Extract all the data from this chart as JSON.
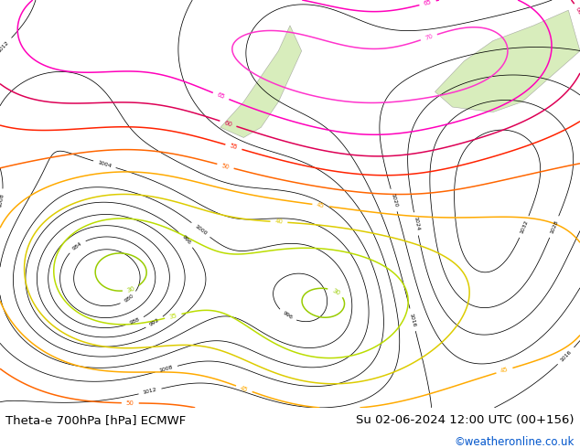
{
  "title_left": "Theta-e 700hPa [hPa] ECMWF",
  "title_right": "Su 02-06-2024 12:00 UTC (00+156)",
  "credit": "©weatheronline.co.uk",
  "credit_color": "#0055cc",
  "bg_color": "#ffffff",
  "map_bg": "#f5f5f5",
  "fig_width": 6.34,
  "fig_height": 4.9,
  "dpi": 100,
  "bottom_bar_height": 0.09,
  "label_fontsize": 9.5,
  "credit_fontsize": 8.5,
  "thetae_colors": {
    "20": "#00ccff",
    "25": "#00aadd",
    "30": "#88cc00",
    "35": "#aadd00",
    "40": "#ccdd00",
    "45": "#ffaa00",
    "50": "#ff6600",
    "55": "#ff2200",
    "60": "#cc0066",
    "65": "#ff00cc",
    "70": "#ff44cc",
    "75": "#ff77dd",
    "80": "#ff00ff"
  }
}
